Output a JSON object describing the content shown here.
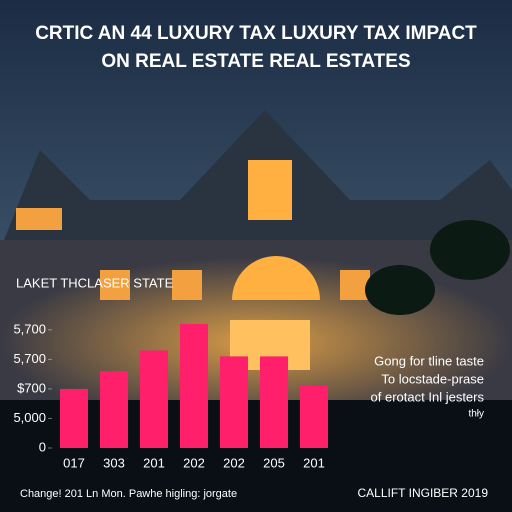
{
  "chart_data": {
    "type": "bar",
    "title": [
      "CRTIC AN 44 LUXURY TAX LUXURY TAX IMPACT",
      "ON REAL ESTATE REAL ESTATES"
    ],
    "subtitle": "LAKET THCLASER STATE",
    "categories": [
      "017",
      "303",
      "201",
      "202",
      "202",
      "205",
      "201"
    ],
    "values": [
      2.0,
      2.6,
      3.3,
      4.2,
      3.1,
      3.1,
      2.1
    ],
    "color": "#ff1f6b",
    "ylim": [
      0,
      4.4
    ],
    "yticks": [
      {
        "value": 0,
        "label": "0"
      },
      {
        "value": 1,
        "label": "5,000"
      },
      {
        "value": 2,
        "label": "$700"
      },
      {
        "value": 3,
        "label": "5,700"
      },
      {
        "value": 4,
        "label": "5,700"
      }
    ],
    "annotation": [
      "Gong for tline taste",
      "To locstade-prase",
      "of erotact Inl jesters",
      "thły"
    ],
    "footer_left": "Change! 201 Ln Mon. Pawhe higling: jorgate",
    "footer_right": "CALLIFT INGIBER 2019"
  }
}
